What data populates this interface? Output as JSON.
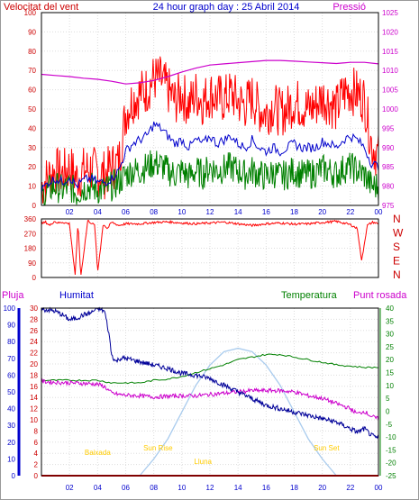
{
  "header": {
    "left_label": "Velocitat del vent",
    "center_title": "24 hour graph day : 25 Abril 2014",
    "right_label": "Pressió"
  },
  "colors": {
    "gust": "#ff0000",
    "wind_avg": "#0000cc",
    "wind_low": "#008000",
    "pressure": "#cc00cc",
    "rain": "#ff0000",
    "humidity": "#000099",
    "temperature": "#008000",
    "dewpoint": "#cc00cc",
    "solar": "#aaccee",
    "sun_labels": "#ffcc00",
    "axis_left": "#cc0000",
    "axis_blue": "#0000cc",
    "axis_green": "#008000",
    "axis_magenta": "#cc00cc"
  },
  "chart_data": [
    {
      "type": "line",
      "name": "wind",
      "left_axis": {
        "label": "Velocitat del vent",
        "ylim": [
          0,
          100
        ],
        "ticks": [
          0,
          10,
          20,
          30,
          40,
          50,
          60,
          70,
          80,
          90,
          100
        ]
      },
      "right_axis": {
        "label": "Pressió",
        "ylim": [
          975,
          1025
        ],
        "ticks": [
          975,
          980,
          985,
          990,
          995,
          1000,
          1005,
          1010,
          1015,
          1020,
          1025
        ]
      },
      "x_ticks": [
        "02",
        "04",
        "06",
        "08",
        "10",
        "12",
        "14",
        "16",
        "18",
        "20",
        "22",
        "00"
      ],
      "grid": true,
      "series": [
        {
          "role": "gust",
          "x": [
            0,
            0.5,
            1,
            1.5,
            2,
            2.5,
            3,
            3.5,
            4,
            4.5,
            5,
            5.5,
            6,
            6.5,
            7,
            7.5,
            8,
            8.5,
            9,
            9.5,
            10,
            10.5,
            11,
            11.5,
            12,
            12.5,
            13,
            13.5,
            14,
            14.5,
            15,
            15.5,
            16,
            16.5,
            17,
            17.5,
            18,
            18.5,
            19,
            19.5,
            20,
            20.5,
            21,
            21.5,
            22,
            22.5,
            23,
            23.5,
            24
          ],
          "y": [
            10,
            15,
            18,
            16,
            20,
            14,
            18,
            19,
            17,
            16,
            20,
            22,
            48,
            55,
            58,
            60,
            66,
            65,
            60,
            54,
            58,
            52,
            58,
            54,
            58,
            56,
            55,
            58,
            54,
            52,
            56,
            50,
            48,
            52,
            48,
            50,
            54,
            52,
            50,
            52,
            56,
            54,
            50,
            58,
            60,
            58,
            55,
            32,
            25
          ]
        },
        {
          "role": "average",
          "x": [
            0,
            0.5,
            1,
            1.5,
            2,
            2.5,
            3,
            3.5,
            4,
            4.5,
            5,
            5.5,
            6,
            6.5,
            7,
            7.5,
            8,
            8.5,
            9,
            9.5,
            10,
            10.5,
            11,
            11.5,
            12,
            12.5,
            13,
            13.5,
            14,
            14.5,
            15,
            15.5,
            16,
            16.5,
            17,
            17.5,
            18,
            18.5,
            19,
            19.5,
            20,
            20.5,
            21,
            21.5,
            22,
            22.5,
            23,
            23.5,
            24
          ],
          "y": [
            8,
            12,
            14,
            12,
            15,
            10,
            13,
            14,
            12,
            12,
            14,
            18,
            28,
            32,
            34,
            36,
            42,
            40,
            36,
            32,
            34,
            30,
            34,
            32,
            36,
            32,
            34,
            36,
            32,
            30,
            34,
            30,
            28,
            30,
            28,
            30,
            32,
            30,
            30,
            30,
            33,
            32,
            30,
            34,
            36,
            34,
            30,
            22,
            20
          ]
        },
        {
          "role": "low",
          "x": [
            0,
            0.5,
            1,
            1.5,
            2,
            2.5,
            3,
            3.5,
            4,
            4.5,
            5,
            5.5,
            6,
            6.5,
            7,
            7.5,
            8,
            8.5,
            9,
            9.5,
            10,
            10.5,
            11,
            11.5,
            12,
            12.5,
            13,
            13.5,
            14,
            14.5,
            15,
            15.5,
            16,
            16.5,
            17,
            17.5,
            18,
            18.5,
            19,
            19.5,
            20,
            20.5,
            21,
            21.5,
            22,
            22.5,
            23,
            23.5,
            24
          ],
          "y": [
            4,
            8,
            10,
            8,
            10,
            6,
            9,
            10,
            8,
            8,
            10,
            12,
            16,
            18,
            18,
            20,
            22,
            21,
            18,
            16,
            18,
            15,
            18,
            16,
            20,
            18,
            19,
            20,
            18,
            16,
            18,
            16,
            15,
            17,
            15,
            16,
            18,
            16,
            16,
            17,
            19,
            18,
            16,
            19,
            20,
            18,
            16,
            10,
            10
          ]
        },
        {
          "role": "pressure",
          "axis": "right",
          "x": [
            0,
            1,
            2,
            3,
            4,
            5,
            6,
            7,
            8,
            9,
            10,
            11,
            12,
            13,
            14,
            15,
            16,
            17,
            18,
            19,
            20,
            21,
            22,
            23,
            24
          ],
          "y": [
            1009,
            1008.7,
            1008.4,
            1008,
            1007.7,
            1007.2,
            1006.5,
            1006.8,
            1007.4,
            1008.4,
            1009.6,
            1010.6,
            1011.4,
            1011.7,
            1012,
            1012.3,
            1012.6,
            1012.6,
            1012.4,
            1012.2,
            1012,
            1011.8,
            1012.1,
            1012.1,
            1011.7
          ]
        }
      ]
    },
    {
      "type": "line",
      "name": "wind-direction",
      "left_axis": {
        "ylim": [
          0,
          360
        ],
        "ticks": [
          0,
          90,
          180,
          270,
          360
        ]
      },
      "right_axis": {
        "labels": [
          "N",
          "W",
          "S",
          "E",
          "N"
        ]
      },
      "x_ticks": [],
      "series": [
        {
          "role": "direction",
          "x": [
            0,
            0.3,
            0.6,
            0.9,
            1.2,
            1.5,
            2,
            2.4,
            2.6,
            2.8,
            3.3,
            3.8,
            4,
            4.4,
            4.7,
            5,
            5.5,
            6,
            7,
            8,
            9,
            10,
            11,
            12,
            13,
            14,
            15,
            16,
            17,
            18,
            19,
            20,
            21,
            22,
            22.5,
            22.8,
            23.2,
            23.6,
            24
          ],
          "y": [
            330,
            340,
            320,
            345,
            335,
            340,
            330,
            10,
            340,
            5,
            350,
            320,
            30,
            330,
            300,
            340,
            320,
            330,
            330,
            338,
            342,
            335,
            330,
            335,
            340,
            330,
            320,
            330,
            335,
            328,
            330,
            338,
            345,
            325,
            300,
            100,
            320,
            340,
            330
          ]
        }
      ]
    },
    {
      "type": "line",
      "name": "rain-humidity-temperature",
      "labels": {
        "rain": "Pluja",
        "humidity": "Humitat",
        "temperature": "Temperatura",
        "dewpoint": "Punt rosada"
      },
      "rain_axis": {
        "ylim": [
          0,
          30
        ],
        "ticks": [
          0,
          2,
          4,
          6,
          8,
          10,
          12,
          14,
          16,
          18,
          20,
          22,
          24,
          26,
          28,
          30
        ]
      },
      "humidity_axis": {
        "ylim": [
          0,
          100
        ],
        "ticks": [
          0,
          10,
          20,
          30,
          40,
          50,
          60,
          70,
          80,
          90,
          100
        ]
      },
      "temperature_axis": {
        "ylim": [
          -25,
          40
        ],
        "ticks": [
          -25,
          -20,
          -15,
          -10,
          -5,
          0,
          5,
          10,
          15,
          20,
          25,
          30,
          35,
          40
        ]
      },
      "x_ticks": [
        "02",
        "04",
        "06",
        "08",
        "10",
        "12",
        "14",
        "16",
        "18",
        "20",
        "22",
        "00"
      ],
      "annotations": [
        "Baixada",
        "Sun Rise",
        "Lluna",
        "Sun Set"
      ],
      "series": [
        {
          "role": "humidity",
          "axis": "humidity",
          "x": [
            0,
            0.5,
            1,
            1.5,
            2,
            2.5,
            3,
            3.5,
            4,
            4.5,
            4.8,
            5,
            5.3,
            5.6,
            6,
            7,
            8,
            9,
            10,
            11,
            12,
            13,
            14,
            15,
            16,
            17,
            18,
            19,
            20,
            21,
            22,
            22.5,
            23,
            23.5,
            24
          ],
          "y": [
            99,
            99,
            98,
            96,
            93,
            94,
            96,
            97,
            100,
            98,
            85,
            72,
            68,
            70,
            70,
            68,
            66,
            64,
            61,
            60,
            58,
            54,
            50,
            46,
            42,
            40,
            38,
            36,
            34,
            32,
            28,
            26,
            28,
            24,
            22
          ]
        },
        {
          "role": "temperature",
          "axis": "temperature",
          "x": [
            0,
            1,
            2,
            3,
            4,
            5,
            6,
            7,
            8,
            9,
            10,
            11,
            12,
            13,
            14,
            15,
            16,
            17,
            18,
            19,
            20,
            21,
            22,
            23,
            24
          ],
          "y": [
            12,
            12,
            12,
            12,
            12,
            11,
            11,
            11,
            12,
            12.5,
            13.5,
            15,
            16.5,
            18,
            20,
            21,
            22,
            22,
            21,
            20,
            19,
            18,
            17.5,
            17,
            17
          ]
        },
        {
          "role": "dewpoint",
          "axis": "temperature",
          "x": [
            0,
            1,
            2,
            3,
            4,
            4.5,
            5,
            5.5,
            6,
            7,
            8,
            9,
            10,
            11,
            12,
            13,
            14,
            15,
            16,
            17,
            18,
            19,
            20,
            21,
            22,
            22.5,
            23,
            23.5,
            24
          ],
          "y": [
            11.5,
            11.2,
            11,
            10.8,
            10.5,
            9.5,
            7,
            6.5,
            6.2,
            6,
            5.5,
            5.8,
            6,
            6,
            6.5,
            7,
            7.5,
            8,
            8,
            8,
            7.5,
            6,
            5,
            3,
            1,
            -1,
            0,
            -2,
            -3
          ]
        },
        {
          "role": "solar",
          "axis": "humidity",
          "x": [
            7,
            8,
            9,
            10,
            11,
            12,
            13,
            14,
            15,
            16,
            17,
            18,
            19,
            20,
            21
          ],
          "y": [
            0,
            10,
            22,
            38,
            54,
            66,
            74,
            76,
            74,
            66,
            54,
            38,
            22,
            10,
            0
          ]
        },
        {
          "role": "rain",
          "axis": "rain",
          "x": [
            0,
            24
          ],
          "y": [
            0,
            0
          ]
        }
      ]
    }
  ]
}
